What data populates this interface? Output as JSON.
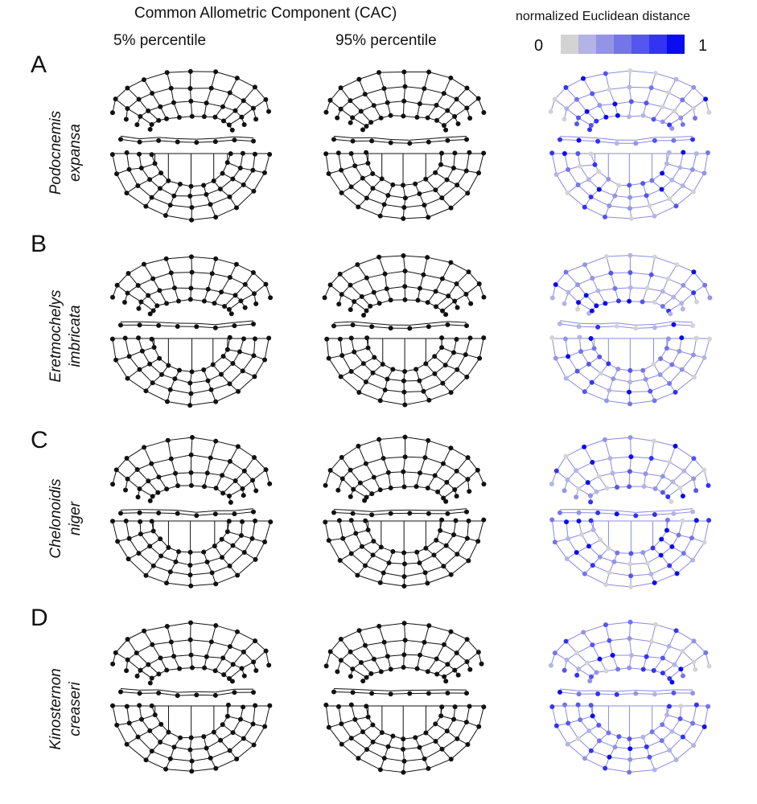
{
  "header": {
    "title": "Common Allometric Component (CAC)",
    "col_low": "5% percentile",
    "col_high": "95% percentile"
  },
  "legend": {
    "title": "normalized Euclidean distance",
    "min_label": "0",
    "max_label": "1",
    "colors": [
      "#d3d3d3",
      "#b3b3e6",
      "#9494e6",
      "#7575ea",
      "#5555ef",
      "#3333f3",
      "#0c0cf0"
    ]
  },
  "panels": [
    {
      "letter": "A",
      "species_line1": "Podocnemis",
      "species_line2": "expansa"
    },
    {
      "letter": "B",
      "species_line1": "Eretmochelys",
      "species_line2": "imbricata"
    },
    {
      "letter": "C",
      "species_line1": "Chelonoidis",
      "species_line2": "niger"
    },
    {
      "letter": "D",
      "species_line1": "Kinosternon",
      "species_line2": "creaseri"
    }
  ]
}
